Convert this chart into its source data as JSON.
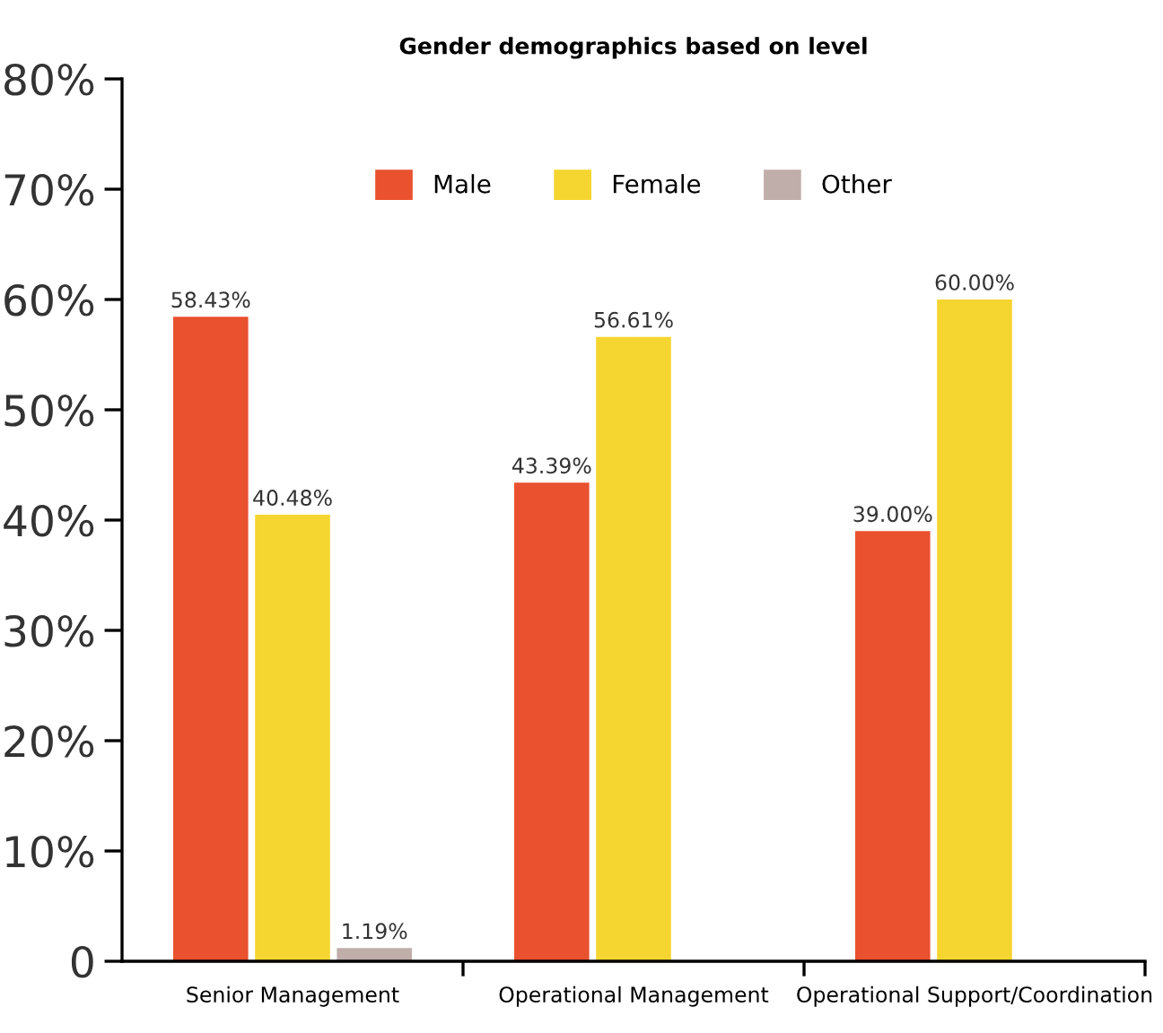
{
  "chart_data": {
    "type": "bar",
    "title": "Gender demographics based on level",
    "categories": [
      "Senior Management",
      "Operational Management",
      "Operational Support/Coordination"
    ],
    "series": [
      {
        "name": "Male",
        "color": "#e9512f",
        "values": [
          58.43,
          43.39,
          39.0
        ],
        "value_labels": [
          "58.43%",
          "43.39%",
          "39.00%"
        ]
      },
      {
        "name": "Female",
        "color": "#f5d52f",
        "values": [
          40.48,
          56.61,
          60.0
        ],
        "value_labels": [
          "40.48%",
          "56.61%",
          "60.00%"
        ]
      },
      {
        "name": "Other",
        "color": "#bfaeaa",
        "values": [
          1.19,
          null,
          null
        ],
        "value_labels": [
          "1.19%",
          null,
          null
        ]
      }
    ],
    "ylim": [
      0,
      80
    ],
    "yticks": [
      0,
      {
        "value": 10,
        "label": "10%"
      },
      {
        "value": 20,
        "label": "20%"
      },
      {
        "value": 30,
        "label": "30%"
      },
      {
        "value": 40,
        "label": "40%"
      },
      {
        "value": 50,
        "label": "50%"
      },
      {
        "value": 60,
        "label": "60%"
      },
      {
        "value": 70,
        "label": "70%"
      },
      {
        "value": 80,
        "label": "80%"
      }
    ],
    "grid": false,
    "legend": "top"
  }
}
